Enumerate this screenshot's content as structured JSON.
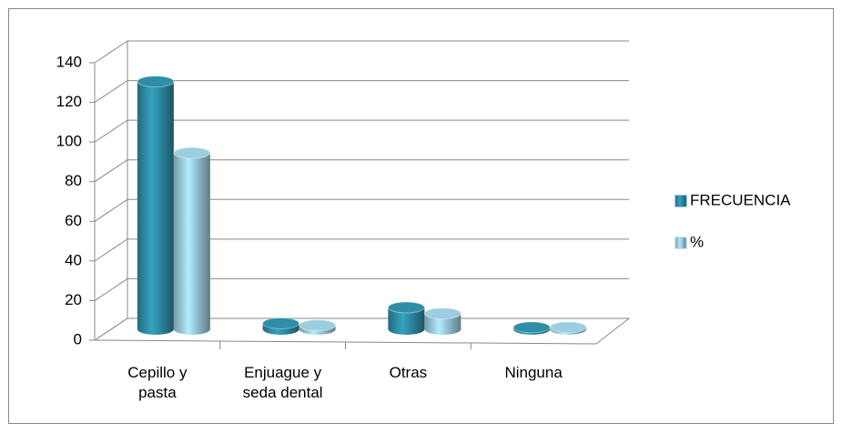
{
  "chart_data": {
    "type": "bar3d",
    "categories": [
      "Cepillo y pasta",
      "Enjuague y seda dental",
      "Otras",
      "Ninguna"
    ],
    "series": [
      {
        "name": "FRECUENCIA",
        "color": "#2e8ea8",
        "values": [
          125,
          3,
          11,
          1
        ]
      },
      {
        "name": "%",
        "color": "#9ccde0",
        "values": [
          89,
          2,
          8,
          1
        ]
      }
    ],
    "ylim": [
      0,
      140
    ],
    "yticks": [
      0,
      20,
      40,
      60,
      80,
      100,
      120,
      140
    ],
    "grid": true,
    "legend": "right"
  }
}
